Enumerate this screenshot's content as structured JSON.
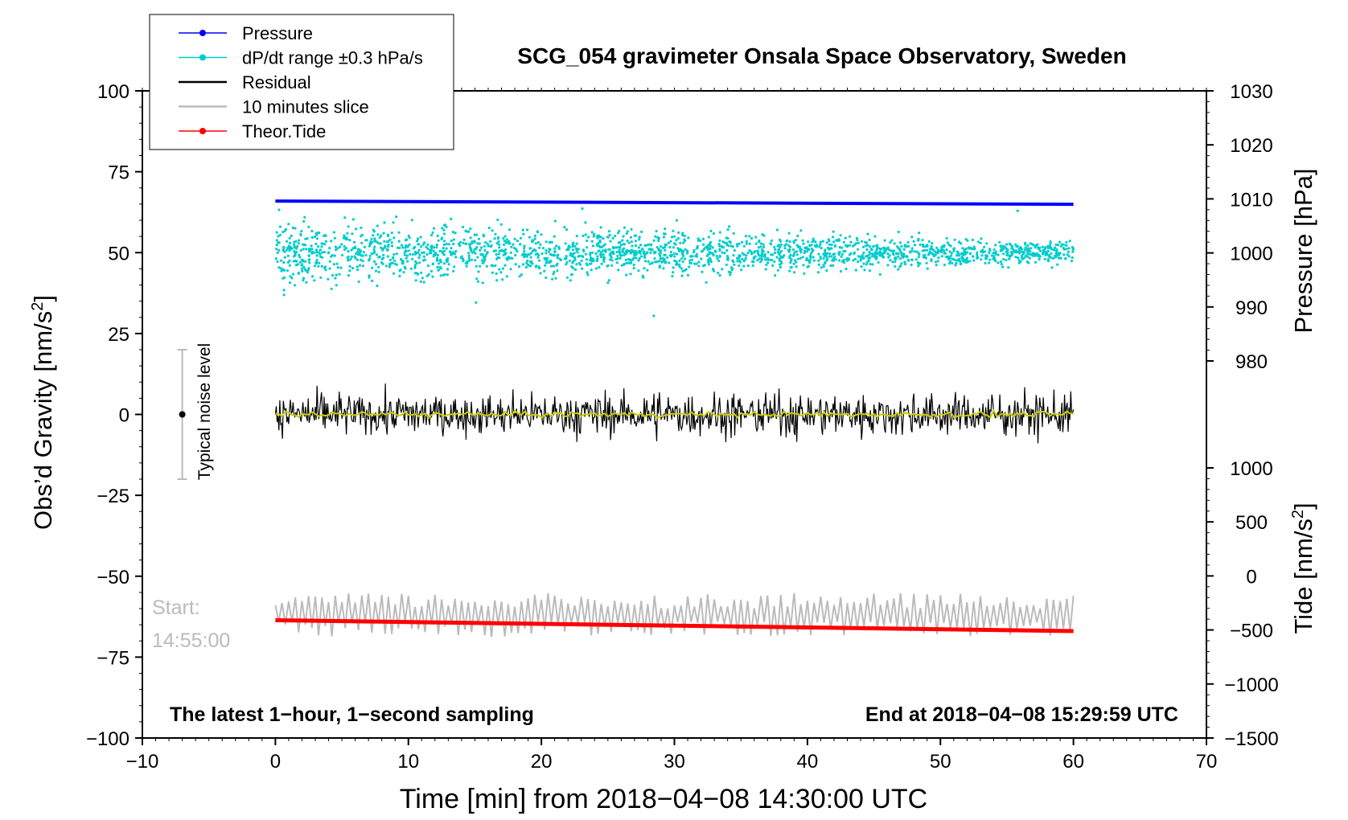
{
  "chart_data": {
    "type": "line",
    "title": "SCG_054 gravimeter Onsala Space Observatory, Sweden",
    "xlabel": "Time [min] from 2018−04−08 14:30:00 UTC",
    "ylabel": "Obs’d Gravity [nm/s",
    "ylabel_sup": "2",
    "ylabel_close": "]",
    "y2_label": "Pressure [hPa]",
    "y3_label": "Tide [nm/s",
    "y3_label_sup": "2",
    "y3_label_close": "]",
    "xlim": [
      -10,
      70
    ],
    "ylim": [
      -100,
      100
    ],
    "pressure_lim": [
      970,
      1030
    ],
    "tide_lim": [
      -1500,
      1000
    ],
    "x_ticks": [
      -10,
      0,
      10,
      20,
      30,
      40,
      50,
      60,
      70
    ],
    "x_tick_labels": [
      "−10",
      "0",
      "10",
      "20",
      "30",
      "40",
      "50",
      "60",
      "70"
    ],
    "y_ticks": [
      -100,
      -75,
      -50,
      -25,
      0,
      25,
      50,
      75,
      100
    ],
    "y_tick_labels": [
      "−100",
      "−75",
      "−50",
      "−25",
      "0",
      "25",
      "50",
      "75",
      "100"
    ],
    "pressure_ticks": [
      980,
      990,
      1000,
      1010,
      1020,
      1030
    ],
    "pressure_tick_labels": [
      "980",
      "990",
      "1000",
      "1010",
      "1020",
      "1030"
    ],
    "tide_ticks": [
      -1500,
      -1000,
      -500,
      0,
      500,
      1000
    ],
    "tide_tick_labels": [
      "−1500",
      "−1000",
      "−500",
      "0",
      "500",
      "1000"
    ],
    "legend": [
      {
        "label": "Pressure",
        "color": "#0000ff",
        "style": "line-dot"
      },
      {
        "label": "dP/dt range ±0.3 hPa/s",
        "color": "#00cccc",
        "style": "line-dot"
      },
      {
        "label": "Residual",
        "color": "#000000",
        "style": "line"
      },
      {
        "label": "10 minutes slice",
        "color": "#bbbbbb",
        "style": "line"
      },
      {
        "label": "Theor.Tide",
        "color": "#ff0000",
        "style": "line-dot"
      }
    ],
    "series": [
      {
        "name": "Pressure",
        "axis": "pressure",
        "color": "#0000ff",
        "x": [
          0,
          60
        ],
        "values": [
          1009.6,
          1009.0
        ]
      },
      {
        "name": "dP/dt range ±0.3 hPa/s",
        "axis": "gravity",
        "color": "#00cccc",
        "x_range": [
          0,
          60
        ],
        "center": 50,
        "spread_start": 8,
        "spread_end": 3
      },
      {
        "name": "Residual",
        "axis": "gravity",
        "color": "#000000",
        "x_range": [
          0,
          60
        ],
        "center": 0,
        "amplitude": 5
      },
      {
        "name": "Residual smoothed",
        "axis": "gravity",
        "color": "#cccc00",
        "x_range": [
          0,
          60
        ],
        "center": 0,
        "amplitude": 1
      },
      {
        "name": "10 minutes slice",
        "axis": "gravity",
        "color": "#bbbbbb",
        "x_range": [
          0,
          60
        ],
        "center": -62,
        "amplitude": 6
      },
      {
        "name": "Theor.Tide",
        "axis": "tide",
        "color": "#ff0000",
        "x": [
          0,
          60
        ],
        "values": [
          -410,
          -510
        ]
      }
    ],
    "annotations": {
      "noise_label": "Typical noise level",
      "noise_center": 0,
      "noise_range": [
        -20,
        20
      ],
      "noise_x": -7,
      "slice_start_label": "Start:",
      "slice_start_time": "14:55:00",
      "bottom_left": "The latest 1−hour, 1−second sampling",
      "bottom_right": "End at 2018−04−08 15:29:59 UTC"
    }
  }
}
